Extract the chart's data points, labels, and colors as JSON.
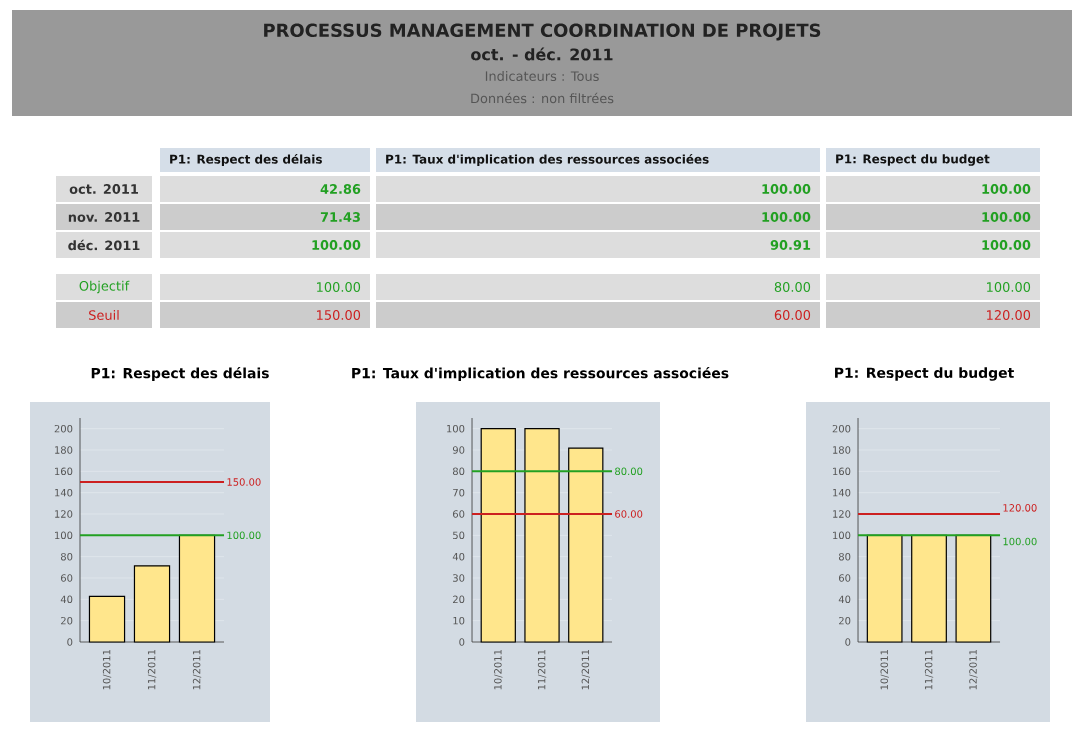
{
  "chart_data": [
    {
      "type": "other",
      "title": "PROCESSUS MANAGEMENT COORDINATION DE PROJETS",
      "subtitle": "oct. - déc. 2011",
      "annotations": [
        "Indicateurs : Tous",
        "Données : non filtrées",
        "oct. 2011",
        "42.86",
        "100.00",
        "100.00",
        "nov. 2011",
        "71.43",
        "100.00",
        "100.00",
        "déc. 2011",
        "100.00",
        "90.91",
        "100.00",
        "Objectif",
        "Seuil"
      ]
    },
    {
      "type": "bar",
      "title": "P1: Respect des délais",
      "categories": [
        "10/2011",
        "11/2011",
        "12/2011"
      ],
      "values": [
        42.86,
        71.43,
        100
      ],
      "color": "#ffe68c",
      "ylim": [
        0,
        210
      ],
      "yticks": [
        0,
        20,
        40,
        60,
        80,
        100,
        120,
        140,
        160,
        180,
        200
      ],
      "grid": "y",
      "ref_lines": [
        {
          "axis": "y",
          "value": 100,
          "label": "100.00",
          "color": "#22a022"
        },
        {
          "axis": "y",
          "value": 150,
          "label": "150.00",
          "color": "#cc2020"
        }
      ]
    },
    {
      "type": "bar",
      "title": "P1: Taux d'implication des ressources associées",
      "categories": [
        "10/2011",
        "11/2011",
        "12/2011"
      ],
      "values": [
        100,
        100,
        90.91
      ],
      "color": "#ffe68c",
      "ylim": [
        0,
        105
      ],
      "yticks": [
        0,
        10,
        20,
        30,
        40,
        50,
        60,
        70,
        80,
        90,
        100
      ],
      "grid": "y",
      "ref_lines": [
        {
          "axis": "y",
          "value": 80,
          "label": "80.00",
          "color": "#22a022"
        },
        {
          "axis": "y",
          "value": 60,
          "label": "60.00",
          "color": "#cc2020"
        }
      ]
    },
    {
      "type": "bar",
      "title": "P1: Respect du budget",
      "categories": [
        "10/2011",
        "11/2011",
        "12/2011"
      ],
      "values": [
        100,
        100,
        100
      ],
      "color": "#ffe68c",
      "ylim": [
        0,
        210
      ],
      "yticks": [
        0,
        20,
        40,
        60,
        80,
        100,
        120,
        140,
        160,
        180,
        200
      ],
      "grid": "y",
      "ref_lines": [
        {
          "axis": "y",
          "value": 100,
          "label": "100.00",
          "color": "#22a022"
        },
        {
          "axis": "y",
          "value": 120,
          "label": "120.00",
          "color": "#cc2020"
        }
      ]
    }
  ]
}
